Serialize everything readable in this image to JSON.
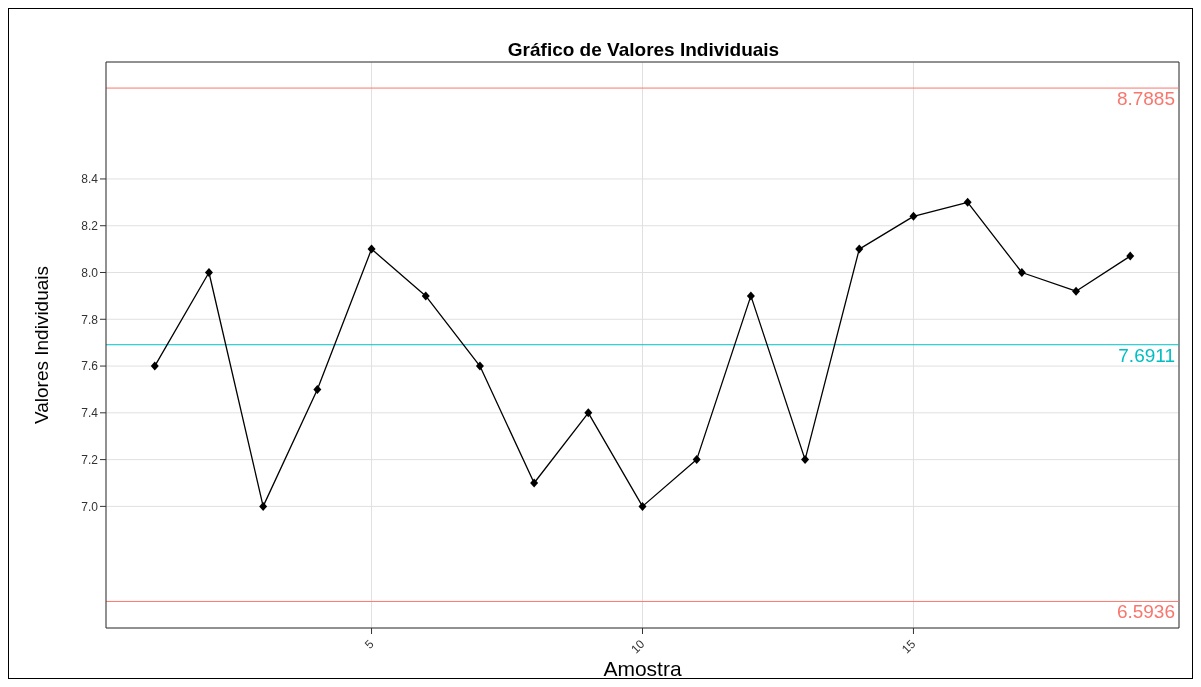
{
  "chart_data": {
    "type": "line",
    "title": "Gráfico de Valores Individuais",
    "xlabel": "Amostra",
    "ylabel": "Valores Individuais",
    "x": [
      1,
      2,
      3,
      4,
      5,
      6,
      7,
      8,
      9,
      10,
      11,
      12,
      13,
      14,
      15,
      16,
      17,
      18,
      19
    ],
    "series": [
      {
        "color": "#000000",
        "values": [
          7.6,
          8.0,
          7.0,
          7.5,
          8.1,
          7.9,
          7.6,
          7.1,
          7.4,
          7.0,
          7.2,
          7.9,
          7.2,
          8.1,
          8.24,
          8.3,
          8.0,
          7.92,
          8.07
        ]
      }
    ],
    "xlim": [
      0.1,
      19.9
    ],
    "xticks": [
      5,
      10,
      15
    ],
    "ylim": [
      6.48,
      8.9
    ],
    "yticks": [
      {
        "value": 7,
        "label": "7.0"
      },
      7.2,
      7.4,
      7.6,
      7.8,
      {
        "value": 8,
        "label": "8.0"
      },
      8.2,
      8.4
    ],
    "ref_lines": [
      {
        "axis": "y",
        "value": 8.7885,
        "label": "8.7885",
        "color": "#f8766d"
      },
      {
        "axis": "y",
        "value": 7.6911,
        "label": "7.6911",
        "color": "#00bfc4"
      },
      {
        "axis": "y",
        "value": 6.5936,
        "label": "6.5936",
        "color": "#f8766d"
      }
    ],
    "grid": true,
    "marker": "diamond",
    "line_style": "solid"
  }
}
